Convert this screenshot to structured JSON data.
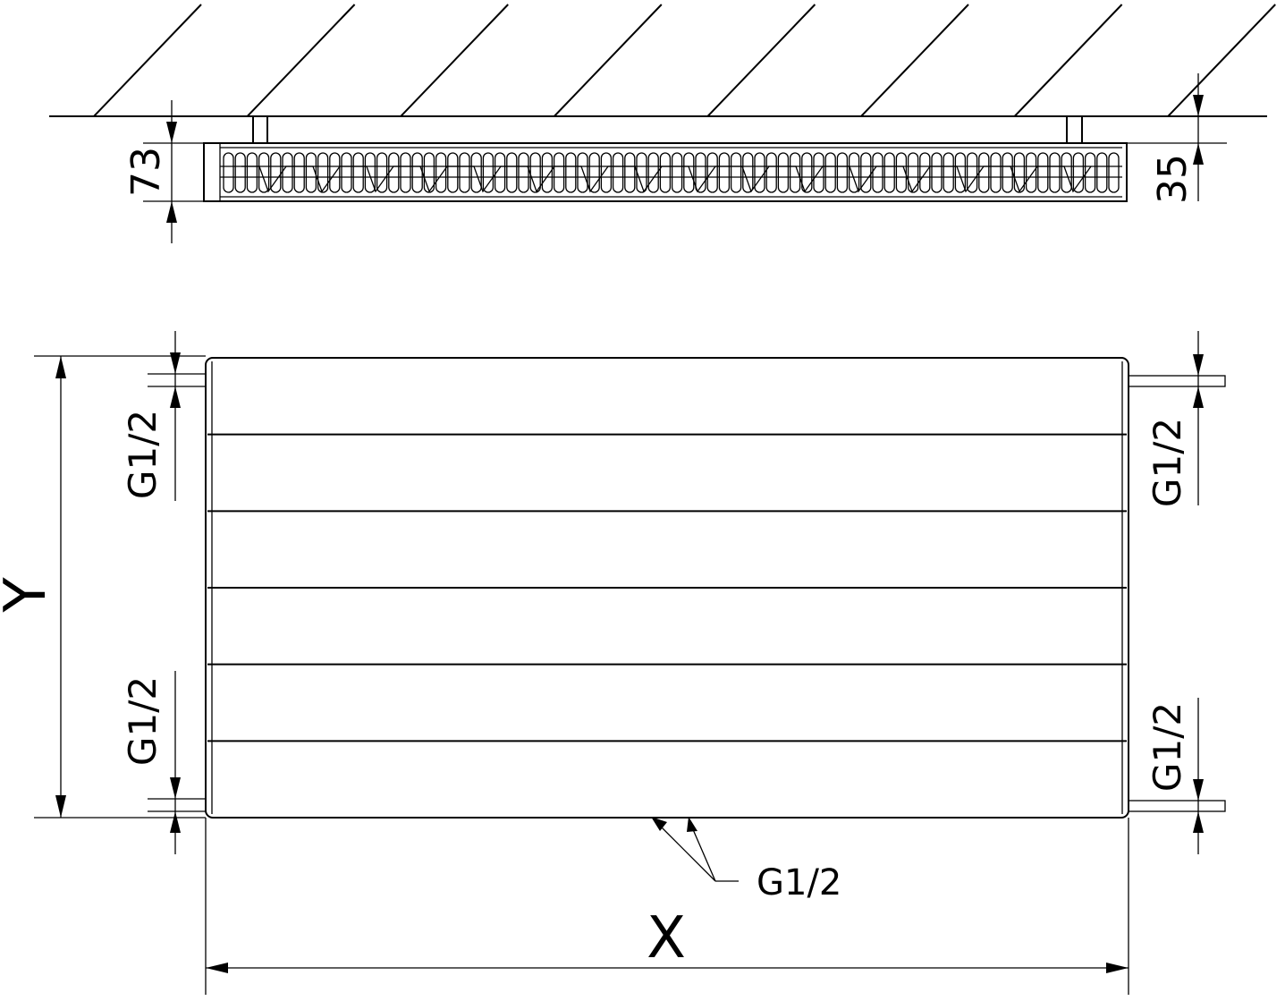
{
  "top_view": {
    "height_dim": "73",
    "offset_dim": "35"
  },
  "front_view": {
    "height_label": "Y",
    "width_label": "X",
    "connection_left_top": "G1/2",
    "connection_left_bottom": "G1/2",
    "connection_right_top": "G1/2",
    "connection_right_bottom": "G1/2",
    "connection_bottom": "G1/2",
    "panel_stripes": 6
  }
}
